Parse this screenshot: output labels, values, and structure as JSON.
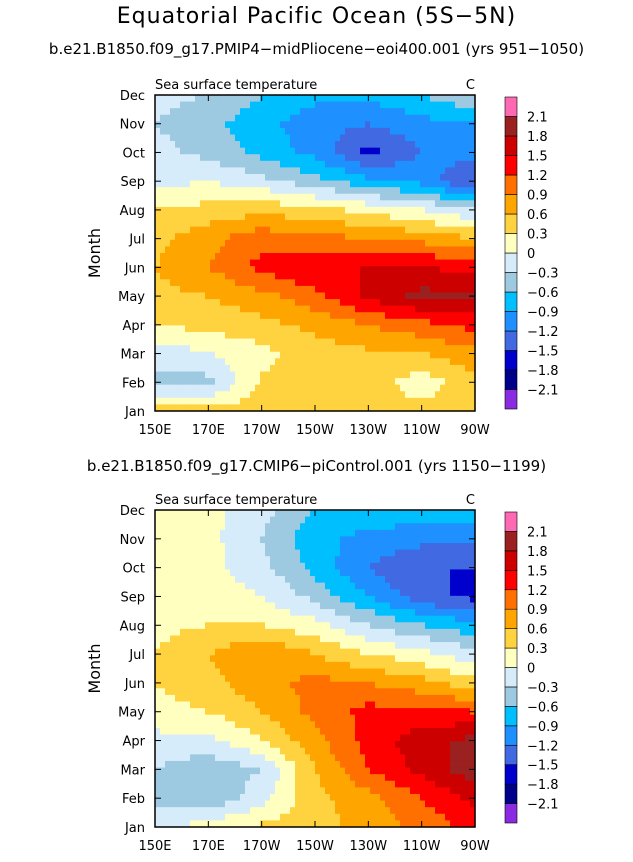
{
  "title": "Equatorial Pacific Ocean (5S−5N)",
  "panels": [
    {
      "subtitle": "b.e21.B1850.f09_g17.PMIP4−midPliocene−eoi400.001 (yrs 951−1050)",
      "variable": "Sea surface temperature",
      "units": "C"
    },
    {
      "subtitle": "b.e21.B1850.f09_g17.CMIP6−piControl.001 (yrs 1150−1199)",
      "variable": "Sea surface temperature",
      "units": "C"
    }
  ],
  "colors": {
    "levels": [
      "#8a2be2",
      "#00008b",
      "#0000cd",
      "#4169e1",
      "#1e90ff",
      "#00bfff",
      "#9ecae1",
      "#d6ecfa",
      "#ffffc0",
      "#ffd23f",
      "#ffa500",
      "#ff7000",
      "#ff0000",
      "#cd0000",
      "#9b2020",
      "#ff69b4"
    ]
  },
  "chart_data": [
    {
      "type": "heatmap",
      "title": "Sea surface temperature",
      "ylabel": "Month",
      "units": "C",
      "x": [
        "150E",
        "170E",
        "170W",
        "150W",
        "130W",
        "110W",
        "90W"
      ],
      "y": [
        "Jan",
        "Feb",
        "Mar",
        "Apr",
        "May",
        "Jun",
        "Jul",
        "Aug",
        "Sep",
        "Oct",
        "Nov",
        "Dec"
      ],
      "levels": [
        -2.1,
        -1.8,
        -1.5,
        -1.2,
        -0.9,
        -0.6,
        -0.3,
        0,
        0.3,
        0.6,
        0.9,
        1.2,
        1.5,
        1.8,
        2.1
      ],
      "values": [
        [
          0.4,
          0.45,
          0.45,
          0.45,
          0.45,
          0.4,
          0.6
        ],
        [
          -0.4,
          -0.4,
          0.35,
          0.45,
          0.5,
          0.1,
          0.5
        ],
        [
          -0.2,
          0.0,
          0.2,
          0.45,
          0.55,
          0.6,
          0.8
        ],
        [
          0.3,
          0.4,
          0.5,
          0.7,
          0.9,
          1.1,
          1.3
        ],
        [
          0.5,
          0.6,
          0.8,
          1.1,
          1.6,
          1.9,
          1.9
        ],
        [
          0.6,
          0.9,
          1.3,
          1.5,
          1.5,
          1.5,
          1.4
        ],
        [
          0.5,
          0.8,
          1.1,
          1.0,
          0.9,
          0.8,
          0.6
        ],
        [
          0.3,
          0.4,
          0.5,
          0.4,
          0.2,
          0.0,
          -0.3
        ],
        [
          -0.1,
          0.0,
          -0.2,
          -0.5,
          -0.8,
          -1.0,
          -1.6
        ],
        [
          -0.2,
          -0.4,
          -0.7,
          -1.0,
          -1.6,
          -1.2,
          -1.0
        ],
        [
          -0.3,
          -0.5,
          -0.8,
          -1.1,
          -1.2,
          -1.0,
          -0.9
        ],
        [
          -0.2,
          -0.3,
          -0.6,
          -0.8,
          -0.8,
          -0.6,
          -0.3
        ]
      ]
    },
    {
      "type": "heatmap",
      "title": "Sea surface temperature",
      "ylabel": "Month",
      "units": "C",
      "x": [
        "150E",
        "170E",
        "170W",
        "150W",
        "130W",
        "110W",
        "90W"
      ],
      "y": [
        "Jan",
        "Feb",
        "Mar",
        "Apr",
        "May",
        "Jun",
        "Jul",
        "Aug",
        "Sep",
        "Oct",
        "Nov",
        "Dec"
      ],
      "levels": [
        -2.1,
        -1.8,
        -1.5,
        -1.2,
        -0.9,
        -0.6,
        -0.3,
        0,
        0.3,
        0.6,
        0.9,
        1.2,
        1.5,
        1.8,
        2.1
      ],
      "values": [
        [
          -0.1,
          0.15,
          0.35,
          0.5,
          0.7,
          1.0,
          1.3
        ],
        [
          -0.4,
          -0.6,
          -0.1,
          0.5,
          0.8,
          1.2,
          1.6
        ],
        [
          -0.3,
          -0.5,
          -0.3,
          0.6,
          1.2,
          1.6,
          2.0
        ],
        [
          -0.1,
          -0.1,
          0.3,
          0.8,
          1.3,
          1.7,
          1.9
        ],
        [
          0.2,
          0.3,
          0.6,
          1.0,
          1.3,
          1.3,
          1.2
        ],
        [
          0.3,
          0.5,
          0.8,
          1.0,
          0.9,
          0.7,
          0.4
        ],
        [
          0.3,
          0.6,
          0.9,
          0.6,
          0.3,
          0.1,
          -0.2
        ],
        [
          0.2,
          0.3,
          0.3,
          0.1,
          -0.3,
          -0.6,
          -0.8
        ],
        [
          0.15,
          0.2,
          0.0,
          -0.4,
          -0.9,
          -1.4,
          -1.6
        ],
        [
          0.15,
          0.1,
          -0.2,
          -0.7,
          -1.2,
          -1.5,
          -1.5
        ],
        [
          0.15,
          0.1,
          -0.3,
          -0.8,
          -1.0,
          -1.1,
          -1.1
        ],
        [
          0.2,
          0.1,
          -0.2,
          -0.6,
          -0.7,
          -0.7,
          -0.7
        ]
      ]
    }
  ]
}
